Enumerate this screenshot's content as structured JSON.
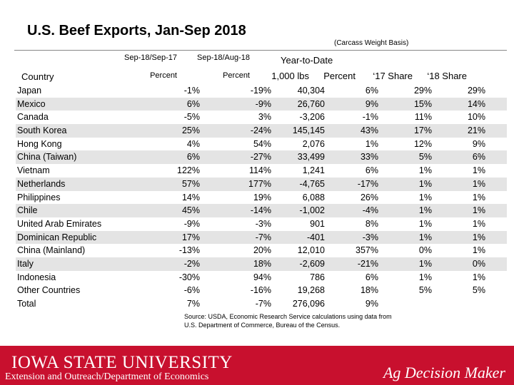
{
  "title": "U.S. Beef Exports, Jan-Sep 2018",
  "subtitle": "(Carcass Weight Basis)",
  "headers": {
    "country": "Country",
    "col1_period": "Sep-18/Sep-17",
    "col1_unit": "Percent",
    "col2_period": "Sep-18/Aug-18",
    "col2_unit": "Percent",
    "ytd": "Year-to-Date",
    "col3": "1,000 lbs",
    "col4": "Percent",
    "col5": "‘17 Share",
    "col6": "‘18 Share"
  },
  "rows": [
    {
      "country": "Japan",
      "v1": "-1%",
      "v2": "-19%",
      "v3": "40,304",
      "v4": "6%",
      "v5": "29%",
      "v6": "29%"
    },
    {
      "country": "Mexico",
      "v1": "6%",
      "v2": "-9%",
      "v3": "26,760",
      "v4": "9%",
      "v5": "15%",
      "v6": "14%"
    },
    {
      "country": "Canada",
      "v1": "-5%",
      "v2": "3%",
      "v3": "-3,206",
      "v4": "-1%",
      "v5": "11%",
      "v6": "10%"
    },
    {
      "country": "South Korea",
      "v1": "25%",
      "v2": "-24%",
      "v3": "145,145",
      "v4": "43%",
      "v5": "17%",
      "v6": "21%"
    },
    {
      "country": "Hong Kong",
      "v1": "4%",
      "v2": "54%",
      "v3": "2,076",
      "v4": "1%",
      "v5": "12%",
      "v6": "9%"
    },
    {
      "country": "China (Taiwan)",
      "v1": "6%",
      "v2": "-27%",
      "v3": "33,499",
      "v4": "33%",
      "v5": "5%",
      "v6": "6%"
    },
    {
      "country": "Vietnam",
      "v1": "122%",
      "v2": "114%",
      "v3": "1,241",
      "v4": "6%",
      "v5": "1%",
      "v6": "1%"
    },
    {
      "country": "Netherlands",
      "v1": "57%",
      "v2": "177%",
      "v3": "-4,765",
      "v4": "-17%",
      "v5": "1%",
      "v6": "1%"
    },
    {
      "country": "Philippines",
      "v1": "14%",
      "v2": "19%",
      "v3": "6,088",
      "v4": "26%",
      "v5": "1%",
      "v6": "1%"
    },
    {
      "country": "Chile",
      "v1": "45%",
      "v2": "-14%",
      "v3": "-1,002",
      "v4": "-4%",
      "v5": "1%",
      "v6": "1%"
    },
    {
      "country": "United Arab Emirates",
      "v1": "-9%",
      "v2": "-3%",
      "v3": "901",
      "v4": "8%",
      "v5": "1%",
      "v6": "1%"
    },
    {
      "country": "Dominican Republic",
      "v1": "17%",
      "v2": "-7%",
      "v3": "-401",
      "v4": "-3%",
      "v5": "1%",
      "v6": "1%"
    },
    {
      "country": "China (Mainland)",
      "v1": "-13%",
      "v2": "20%",
      "v3": "12,010",
      "v4": "357%",
      "v5": "0%",
      "v6": "1%"
    },
    {
      "country": "Italy",
      "v1": "-2%",
      "v2": "18%",
      "v3": "-2,609",
      "v4": "-21%",
      "v5": "1%",
      "v6": "0%"
    },
    {
      "country": "Indonesia",
      "v1": "-30%",
      "v2": "94%",
      "v3": "786",
      "v4": "6%",
      "v5": "1%",
      "v6": "1%"
    },
    {
      "country": "Other Countries",
      "v1": "-6%",
      "v2": "-16%",
      "v3": "19,268",
      "v4": "18%",
      "v5": "5%",
      "v6": "5%"
    },
    {
      "country": "Total",
      "v1": "7%",
      "v2": "-7%",
      "v3": "276,096",
      "v4": "9%",
      "v5": "",
      "v6": ""
    }
  ],
  "source_line1": "Source: USDA, Economic Research Service calculations using data from",
  "source_line2": "U.S. Department of Commerce, Bureau of the Census.",
  "footer": {
    "university": "IOWA STATE UNIVERSITY",
    "department": "Extension and Outreach/Department of Economics",
    "brand": "Ag Decision Maker"
  }
}
